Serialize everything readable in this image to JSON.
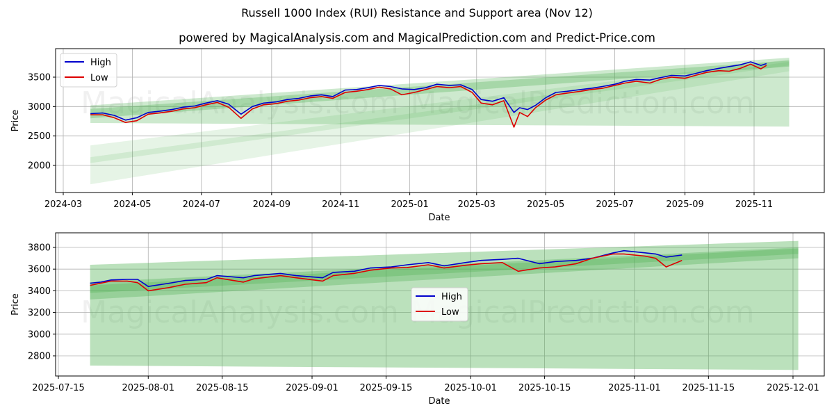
{
  "title": "Russell 1000 Index (RUI) Resistance and Support area (Nov 12)",
  "subtitle": "powered by MagicalAnalysis.com and MagicalPrediction.com and Predict-Price.com",
  "watermarks": [
    "MagicalAnalysis.com",
    "MagicalPrediction.com"
  ],
  "colors": {
    "high": "#0000cc",
    "low": "#dd0000",
    "band": "#4caf50",
    "grid": "#b0b0b0"
  },
  "chart_data": [
    {
      "type": "line",
      "title": "",
      "xlabel": "Date",
      "ylabel": "Price",
      "x_ticks": [
        "2024-03",
        "2024-05",
        "2024-07",
        "2024-09",
        "2024-11",
        "2025-01",
        "2025-03",
        "2025-05",
        "2025-07",
        "2025-09",
        "2025-11"
      ],
      "y_ticks": [
        2000,
        2500,
        3000,
        3500
      ],
      "ylim": [
        1550,
        3970
      ],
      "grid": true,
      "legend": {
        "position": "upper left",
        "entries": [
          "High",
          "Low"
        ]
      },
      "x": [
        "2024-03-25",
        "2024-04-05",
        "2024-04-15",
        "2024-04-25",
        "2024-05-05",
        "2024-05-15",
        "2024-05-25",
        "2024-06-05",
        "2024-06-15",
        "2024-06-25",
        "2024-07-05",
        "2024-07-15",
        "2024-07-25",
        "2024-08-05",
        "2024-08-15",
        "2024-08-25",
        "2024-09-05",
        "2024-09-15",
        "2024-09-25",
        "2024-10-05",
        "2024-10-15",
        "2024-10-25",
        "2024-11-05",
        "2024-11-15",
        "2024-11-25",
        "2024-12-05",
        "2024-12-15",
        "2024-12-25",
        "2025-01-05",
        "2025-01-15",
        "2025-01-25",
        "2025-02-05",
        "2025-02-15",
        "2025-02-25",
        "2025-03-05",
        "2025-03-15",
        "2025-03-25",
        "2025-04-03",
        "2025-04-08",
        "2025-04-15",
        "2025-04-22",
        "2025-05-01",
        "2025-05-10",
        "2025-05-20",
        "2025-06-01",
        "2025-06-10",
        "2025-06-20",
        "2025-07-01",
        "2025-07-10",
        "2025-07-20",
        "2025-08-01",
        "2025-08-10",
        "2025-08-20",
        "2025-09-01",
        "2025-09-10",
        "2025-09-20",
        "2025-10-01",
        "2025-10-10",
        "2025-10-20",
        "2025-10-29",
        "2025-11-07",
        "2025-11-12"
      ],
      "series": [
        {
          "name": "High",
          "color": "#0000cc",
          "values": [
            2880,
            2890,
            2850,
            2770,
            2810,
            2900,
            2920,
            2950,
            2990,
            3010,
            3060,
            3100,
            3040,
            2870,
            3000,
            3060,
            3080,
            3120,
            3140,
            3180,
            3200,
            3170,
            3280,
            3290,
            3320,
            3360,
            3340,
            3300,
            3290,
            3320,
            3380,
            3360,
            3370,
            3290,
            3120,
            3090,
            3150,
            2900,
            2980,
            2950,
            3020,
            3150,
            3240,
            3260,
            3290,
            3310,
            3340,
            3380,
            3430,
            3460,
            3450,
            3490,
            3530,
            3520,
            3560,
            3610,
            3650,
            3680,
            3710,
            3760,
            3700,
            3730
          ]
        },
        {
          "name": "Low",
          "color": "#dd0000",
          "values": [
            2860,
            2860,
            2810,
            2730,
            2760,
            2870,
            2890,
            2920,
            2960,
            2980,
            3030,
            3070,
            2990,
            2800,
            2960,
            3030,
            3050,
            3090,
            3110,
            3150,
            3170,
            3140,
            3240,
            3260,
            3290,
            3330,
            3300,
            3200,
            3240,
            3290,
            3340,
            3320,
            3340,
            3240,
            3060,
            3030,
            3100,
            2650,
            2900,
            2830,
            2980,
            3110,
            3200,
            3230,
            3260,
            3290,
            3310,
            3360,
            3400,
            3430,
            3400,
            3460,
            3500,
            3480,
            3530,
            3580,
            3610,
            3600,
            3650,
            3720,
            3640,
            3700
          ]
        }
      ],
      "bands": [
        {
          "name": "resistance-outer",
          "start": "2024-03-25",
          "end": "2025-12-02",
          "upper": [
            3020,
            3830
          ],
          "lower": [
            2720,
            2660
          ]
        },
        {
          "name": "resistance-inner",
          "start": "2024-03-25",
          "end": "2025-12-02",
          "upper": [
            2960,
            3780
          ],
          "lower": [
            2800,
            3680
          ]
        },
        {
          "name": "support-outer",
          "start": "2024-03-25",
          "end": "2025-12-02",
          "upper": [
            2340,
            3800
          ],
          "lower": [
            1680,
            3600
          ]
        },
        {
          "name": "support-inner",
          "start": "2024-03-25",
          "end": "2025-12-02",
          "upper": [
            2140,
            3760
          ],
          "lower": [
            2040,
            3700
          ]
        }
      ]
    },
    {
      "type": "line",
      "title": "",
      "xlabel": "Date",
      "ylabel": "Price",
      "x_ticks": [
        "2025-07-15",
        "2025-08-01",
        "2025-08-15",
        "2025-09-01",
        "2025-09-15",
        "2025-10-01",
        "2025-10-15",
        "2025-11-01",
        "2025-11-15",
        "2025-12-01"
      ],
      "y_ticks": [
        2800,
        3000,
        3200,
        3400,
        3600,
        3800
      ],
      "ylim": [
        2620,
        3920
      ],
      "grid": true,
      "legend": {
        "position": "center",
        "entries": [
          "High",
          "Low"
        ]
      },
      "x": [
        "2025-07-21",
        "2025-07-23",
        "2025-07-25",
        "2025-07-28",
        "2025-07-30",
        "2025-08-01",
        "2025-08-05",
        "2025-08-08",
        "2025-08-12",
        "2025-08-14",
        "2025-08-19",
        "2025-08-21",
        "2025-08-26",
        "2025-08-29",
        "2025-09-03",
        "2025-09-05",
        "2025-09-09",
        "2025-09-12",
        "2025-09-16",
        "2025-09-19",
        "2025-09-23",
        "2025-09-26",
        "2025-09-30",
        "2025-10-03",
        "2025-10-07",
        "2025-10-10",
        "2025-10-14",
        "2025-10-17",
        "2025-10-21",
        "2025-10-24",
        "2025-10-28",
        "2025-10-30",
        "2025-11-03",
        "2025-11-05",
        "2025-11-07",
        "2025-11-10"
      ],
      "series": [
        {
          "name": "High",
          "color": "#0000cc",
          "values": [
            3470,
            3480,
            3500,
            3505,
            3505,
            3440,
            3470,
            3495,
            3505,
            3540,
            3520,
            3540,
            3560,
            3540,
            3520,
            3570,
            3580,
            3610,
            3620,
            3640,
            3660,
            3630,
            3660,
            3680,
            3690,
            3700,
            3650,
            3670,
            3680,
            3700,
            3750,
            3770,
            3750,
            3740,
            3710,
            3730
          ]
        },
        {
          "name": "Low",
          "color": "#dd0000",
          "values": [
            3450,
            3470,
            3490,
            3490,
            3475,
            3400,
            3430,
            3460,
            3475,
            3520,
            3480,
            3510,
            3540,
            3520,
            3490,
            3540,
            3560,
            3590,
            3610,
            3615,
            3640,
            3610,
            3635,
            3650,
            3660,
            3580,
            3610,
            3620,
            3650,
            3700,
            3740,
            3740,
            3720,
            3700,
            3620,
            3680
          ]
        }
      ],
      "bands": [
        {
          "name": "outer",
          "start": "2025-07-21",
          "end": "2025-12-02",
          "upper": [
            3640,
            3860
          ],
          "lower": [
            2710,
            2670
          ]
        },
        {
          "name": "mid",
          "start": "2025-07-21",
          "end": "2025-12-02",
          "upper": [
            3480,
            3800
          ],
          "lower": [
            3320,
            3700
          ]
        },
        {
          "name": "inner",
          "start": "2025-07-21",
          "end": "2025-12-02",
          "upper": [
            3450,
            3790
          ],
          "lower": [
            3380,
            3740
          ]
        }
      ]
    }
  ]
}
